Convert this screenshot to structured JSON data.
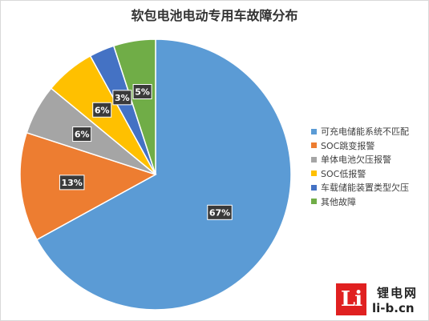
{
  "chart_data": {
    "type": "pie",
    "title": "软包电池电动专用车故障分布",
    "categories": [
      "可充电储能系统不匹配",
      "SOC跳变报警",
      "单体电池欠压报警",
      "SOC低报警",
      "车载储能装置类型欠压",
      "其他故障"
    ],
    "values": [
      67,
      13,
      6,
      6,
      3,
      5
    ],
    "labels": [
      "67%",
      "13%",
      "6%",
      "6%",
      "3%",
      "5%"
    ],
    "colors": [
      "#5b9bd5",
      "#ed7d31",
      "#a5a5a5",
      "#ffc000",
      "#4472c4",
      "#70ad47"
    ],
    "legend_position": "right"
  },
  "watermark": {
    "logo_text": "Li",
    "name": "锂电网",
    "url": "li-b.cn"
  }
}
